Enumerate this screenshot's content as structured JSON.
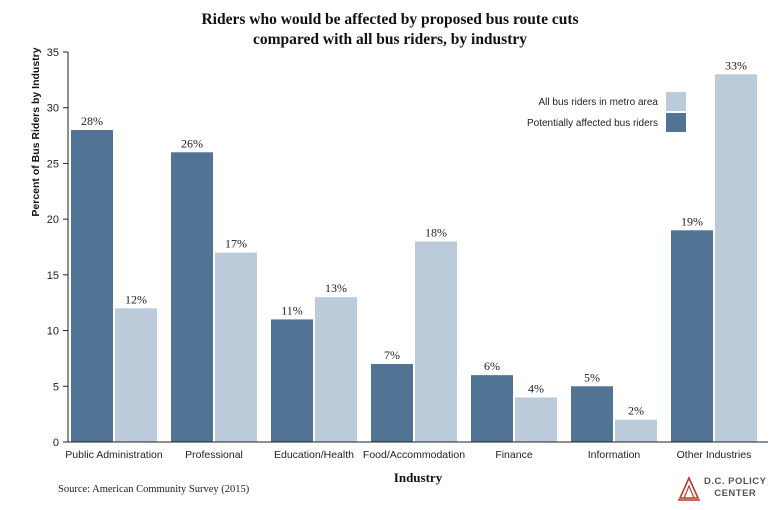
{
  "chart_data": {
    "type": "bar",
    "title_line1": "Riders who would be affected by proposed bus route cuts",
    "title_line2": "compared with all bus riders, by industry",
    "xlabel": "Industry",
    "ylabel": "Percent of Bus Riders by Industry",
    "ylim": [
      0,
      35
    ],
    "yticks": [
      0,
      5,
      10,
      15,
      20,
      25,
      30,
      35
    ],
    "categories": [
      "Public Administration",
      "Professional",
      "Education/Health",
      "Food/Accommodation",
      "Finance",
      "Information",
      "Other Industries"
    ],
    "series": [
      {
        "name": "Potentially affected bus riders",
        "color": "#517394",
        "values": [
          28,
          26,
          11,
          7,
          6,
          5,
          19
        ],
        "labels": [
          "28%",
          "26%",
          "11%",
          "7%",
          "6%",
          "5%",
          "19%"
        ]
      },
      {
        "name": "All bus riders in metro area",
        "color": "#bccbd9",
        "values": [
          12,
          17,
          13,
          18,
          4,
          2,
          33
        ],
        "labels": [
          "12%",
          "17%",
          "13%",
          "18%",
          "4%",
          "2%",
          "33%"
        ]
      }
    ],
    "legend_placement": "top-right",
    "grid": false
  },
  "source": "Source: American Community Survey (2015)",
  "logo": {
    "line1": "D.C. POLICY",
    "line2": "CENTER"
  }
}
